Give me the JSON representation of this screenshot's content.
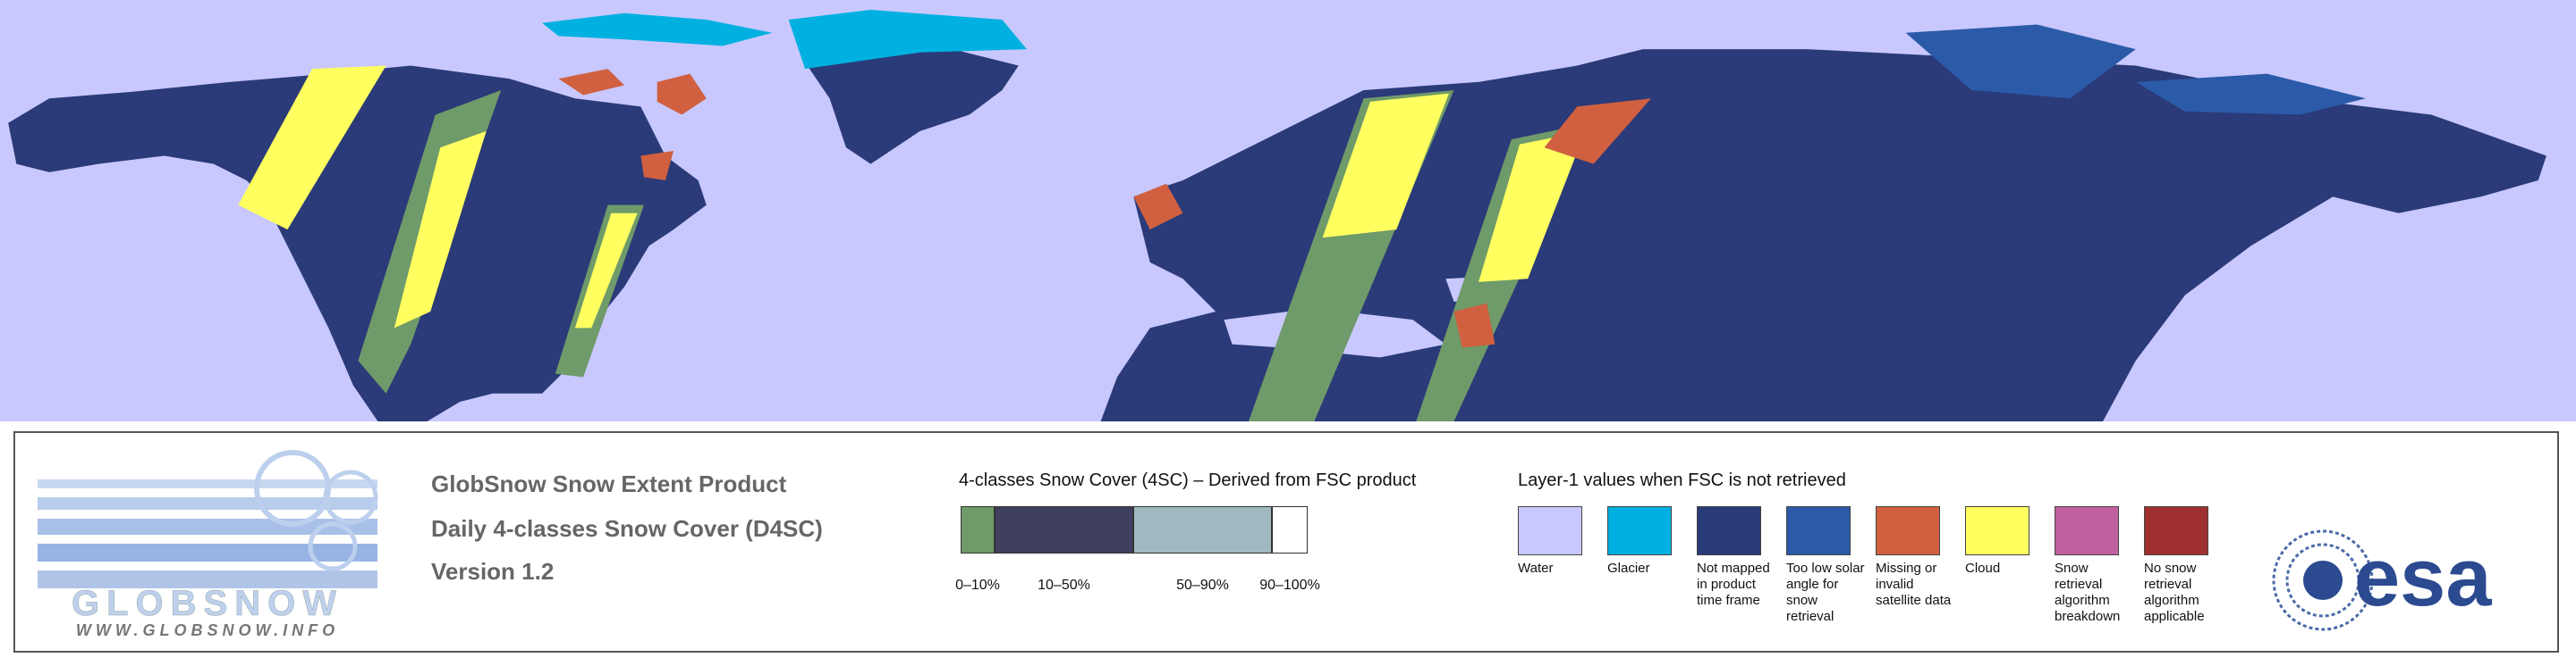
{
  "logo": {
    "name": "GLOBSNOW",
    "url": "WWW.GLOBSNOW.INFO"
  },
  "product": {
    "lines": [
      "GlobSnow Snow Extent Product",
      "Daily 4-classes Snow Cover (D4SC)",
      "Version 1.2"
    ]
  },
  "snow_cover": {
    "title": "4-classes Snow Cover (4SC) – Derived from FSC product",
    "classes": [
      {
        "label": "0–10%",
        "color": "#6f9a6a"
      },
      {
        "label": "10–50%",
        "color": "#3f3f5f"
      },
      {
        "label": "50–90%",
        "color": "#a0b8c0"
      },
      {
        "label": "90–100%",
        "color": "#ffffff"
      }
    ]
  },
  "layer1": {
    "title": "Layer-1 values when FSC is not retrieved",
    "items": [
      {
        "label": "Water",
        "color": "#c8c8ff"
      },
      {
        "label": "Glacier",
        "color": "#00b0e0"
      },
      {
        "label": "Not mapped in product time frame",
        "color": "#2b3a78"
      },
      {
        "label": "Too low solar angle for snow retrieval",
        "color": "#2b5aa8"
      },
      {
        "label": "Missing or invalid satellite data",
        "color": "#d06040"
      },
      {
        "label": "Cloud",
        "color": "#ffff60"
      },
      {
        "label": "Snow retrieval algorithm breakdown",
        "color": "#c060a0"
      },
      {
        "label": "No snow retrieval algorithm applicable",
        "color": "#a03030"
      }
    ]
  },
  "agency": "esa"
}
